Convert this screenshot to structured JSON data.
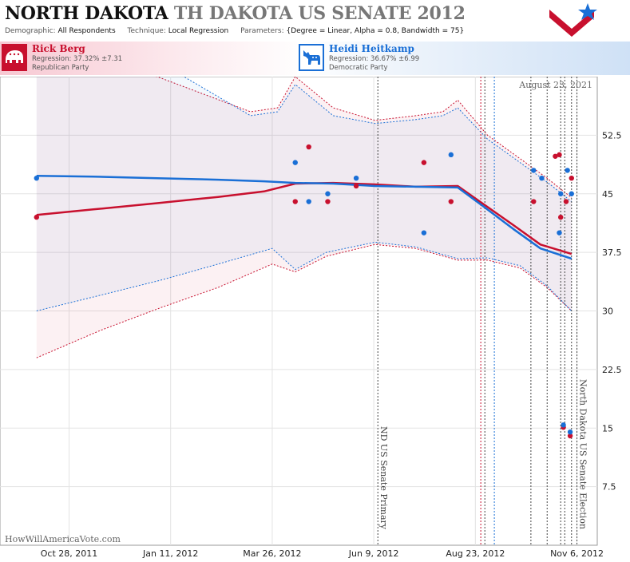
{
  "header": {
    "title_state": "NORTH DAKOTA",
    "title_race": "TH DAKOTA US SENATE 2012",
    "demographic_label": "Demographic:",
    "demographic_value": "All Respondents",
    "technique_label": "Technique:",
    "technique_value": "Local Regression",
    "parameters_label": "Parameters:",
    "parameters_value": "{Degree = Linear, Alpha = 0.8, Bandwidth = 75}"
  },
  "candidates": {
    "rep": {
      "name": "Rick Berg",
      "regression": "Regression: 37.32% ±7.31",
      "party": "Republican Party",
      "color": "#c8102e",
      "icon": "elephant-icon"
    },
    "dem": {
      "name": "Heidi Heitkamp",
      "regression": "Regression: 36.67% ±6.99",
      "party": "Democratic Party",
      "color": "#1a6fd6",
      "icon": "donkey-icon"
    }
  },
  "watermark": "HowWillAmericaVote.com",
  "date_stamp": "August 23, 2021",
  "chart_data": {
    "type": "scatter",
    "x_ticks": [
      "Oct 28, 2011",
      "Jan 11, 2012",
      "Mar 26, 2012",
      "Jun 9, 2012",
      "Aug 23, 2012",
      "Nov 6, 2012"
    ],
    "xlim": [
      "2011-09-07",
      "2012-11-21"
    ],
    "y_ticks": [
      "7.5",
      "15",
      "22.5",
      "30",
      "37.5",
      "45",
      "52.5"
    ],
    "ylim": [
      0,
      60
    ],
    "grid": true,
    "events": [
      {
        "date": "2012-06-12",
        "label": "ND US Senate Primary"
      },
      {
        "date": "2012-11-06",
        "label": "North Dakota US Senate Election"
      }
    ],
    "markers": [
      "2012-08-27",
      "2012-08-30",
      "2012-09-06",
      "2012-10-03",
      "2012-10-15",
      "2012-10-25",
      "2012-10-28",
      "2012-11-02"
    ],
    "series": [
      {
        "name": "Rick Berg",
        "color": "#c8102e",
        "points": [
          {
            "x": "2011-10-04",
            "y": 42
          },
          {
            "x": "2012-04-12",
            "y": 44
          },
          {
            "x": "2012-04-22",
            "y": 51
          },
          {
            "x": "2012-05-06",
            "y": 44
          },
          {
            "x": "2012-05-27",
            "y": 46
          },
          {
            "x": "2012-07-16",
            "y": 49
          },
          {
            "x": "2012-08-05",
            "y": 44
          },
          {
            "x": "2012-10-05",
            "y": 44
          },
          {
            "x": "2012-10-21",
            "y": 49.8
          },
          {
            "x": "2012-10-24",
            "y": 50
          },
          {
            "x": "2012-10-25",
            "y": 42
          },
          {
            "x": "2012-10-27",
            "y": 15.1
          },
          {
            "x": "2012-10-29",
            "y": 44
          },
          {
            "x": "2012-11-02",
            "y": 47
          },
          {
            "x": "2012-11-01",
            "y": 14
          }
        ],
        "trend": [
          {
            "x": "2011-10-04",
            "y": 42.3
          },
          {
            "x": "2011-11-15",
            "y": 43.0
          },
          {
            "x": "2012-01-01",
            "y": 43.8
          },
          {
            "x": "2012-02-15",
            "y": 44.6
          },
          {
            "x": "2012-03-20",
            "y": 45.3
          },
          {
            "x": "2012-04-12",
            "y": 46.3
          },
          {
            "x": "2012-05-10",
            "y": 46.4
          },
          {
            "x": "2012-06-10",
            "y": 46.2
          },
          {
            "x": "2012-07-10",
            "y": 45.9
          },
          {
            "x": "2012-08-10",
            "y": 46.0
          },
          {
            "x": "2012-08-28",
            "y": 43.8
          },
          {
            "x": "2012-09-20",
            "y": 41.0
          },
          {
            "x": "2012-10-10",
            "y": 38.5
          },
          {
            "x": "2012-11-02",
            "y": 37.3
          }
        ],
        "upper": [
          {
            "x": "2011-10-04",
            "y": 63.0
          },
          {
            "x": "2012-01-01",
            "y": 60.0
          },
          {
            "x": "2012-03-10",
            "y": 55.5
          },
          {
            "x": "2012-03-30",
            "y": 56.0
          },
          {
            "x": "2012-04-12",
            "y": 60.0
          },
          {
            "x": "2012-05-10",
            "y": 56.0
          },
          {
            "x": "2012-06-10",
            "y": 54.4
          },
          {
            "x": "2012-07-10",
            "y": 55.0
          },
          {
            "x": "2012-07-30",
            "y": 55.5
          },
          {
            "x": "2012-08-10",
            "y": 57.0
          },
          {
            "x": "2012-09-01",
            "y": 52.5
          },
          {
            "x": "2012-09-25",
            "y": 49.5
          },
          {
            "x": "2012-10-15",
            "y": 47.0
          },
          {
            "x": "2012-11-02",
            "y": 44.5
          }
        ],
        "lower": [
          {
            "x": "2011-10-04",
            "y": 24.0
          },
          {
            "x": "2011-11-20",
            "y": 27.5
          },
          {
            "x": "2012-01-05",
            "y": 30.5
          },
          {
            "x": "2012-02-15",
            "y": 33.0
          },
          {
            "x": "2012-03-26",
            "y": 36.0
          },
          {
            "x": "2012-04-12",
            "y": 35.0
          },
          {
            "x": "2012-05-05",
            "y": 37.0
          },
          {
            "x": "2012-06-10",
            "y": 38.5
          },
          {
            "x": "2012-07-10",
            "y": 38.0
          },
          {
            "x": "2012-08-10",
            "y": 36.5
          },
          {
            "x": "2012-09-01",
            "y": 36.5
          },
          {
            "x": "2012-09-25",
            "y": 35.5
          },
          {
            "x": "2012-10-15",
            "y": 33.0
          },
          {
            "x": "2012-11-02",
            "y": 30.0
          }
        ]
      },
      {
        "name": "Heidi Heitkamp",
        "color": "#1a6fd6",
        "points": [
          {
            "x": "2011-10-04",
            "y": 47
          },
          {
            "x": "2012-04-12",
            "y": 49
          },
          {
            "x": "2012-04-22",
            "y": 44
          },
          {
            "x": "2012-05-06",
            "y": 45
          },
          {
            "x": "2012-05-27",
            "y": 47
          },
          {
            "x": "2012-07-16",
            "y": 40
          },
          {
            "x": "2012-08-05",
            "y": 50
          },
          {
            "x": "2012-10-05",
            "y": 48
          },
          {
            "x": "2012-10-11",
            "y": 47
          },
          {
            "x": "2012-10-24",
            "y": 40
          },
          {
            "x": "2012-10-25",
            "y": 45
          },
          {
            "x": "2012-10-27",
            "y": 15.4
          },
          {
            "x": "2012-10-30",
            "y": 48
          },
          {
            "x": "2012-11-02",
            "y": 45
          },
          {
            "x": "2012-11-01",
            "y": 14.5
          }
        ],
        "trend": [
          {
            "x": "2011-10-04",
            "y": 47.3
          },
          {
            "x": "2011-11-15",
            "y": 47.2
          },
          {
            "x": "2012-01-01",
            "y": 47.0
          },
          {
            "x": "2012-02-15",
            "y": 46.8
          },
          {
            "x": "2012-03-20",
            "y": 46.6
          },
          {
            "x": "2012-04-12",
            "y": 46.4
          },
          {
            "x": "2012-05-10",
            "y": 46.3
          },
          {
            "x": "2012-06-10",
            "y": 46.0
          },
          {
            "x": "2012-07-10",
            "y": 45.9
          },
          {
            "x": "2012-08-10",
            "y": 45.8
          },
          {
            "x": "2012-08-28",
            "y": 43.5
          },
          {
            "x": "2012-09-20",
            "y": 40.5
          },
          {
            "x": "2012-10-10",
            "y": 38.0
          },
          {
            "x": "2012-11-02",
            "y": 36.7
          }
        ],
        "upper": [
          {
            "x": "2011-10-04",
            "y": 66.0
          },
          {
            "x": "2012-01-01",
            "y": 62.0
          },
          {
            "x": "2012-03-10",
            "y": 55.0
          },
          {
            "x": "2012-03-30",
            "y": 55.5
          },
          {
            "x": "2012-04-12",
            "y": 59.0
          },
          {
            "x": "2012-05-10",
            "y": 55.0
          },
          {
            "x": "2012-06-10",
            "y": 54.0
          },
          {
            "x": "2012-07-10",
            "y": 54.5
          },
          {
            "x": "2012-07-30",
            "y": 55.0
          },
          {
            "x": "2012-08-10",
            "y": 56.0
          },
          {
            "x": "2012-09-01",
            "y": 52.0
          },
          {
            "x": "2012-09-25",
            "y": 49.0
          },
          {
            "x": "2012-10-15",
            "y": 46.5
          },
          {
            "x": "2012-11-02",
            "y": 44.0
          }
        ],
        "lower": [
          {
            "x": "2011-10-04",
            "y": 30.0
          },
          {
            "x": "2011-11-20",
            "y": 32.0
          },
          {
            "x": "2012-01-05",
            "y": 34.0
          },
          {
            "x": "2012-02-15",
            "y": 36.0
          },
          {
            "x": "2012-03-26",
            "y": 38.0
          },
          {
            "x": "2012-04-12",
            "y": 35.3
          },
          {
            "x": "2012-05-05",
            "y": 37.5
          },
          {
            "x": "2012-06-10",
            "y": 38.8
          },
          {
            "x": "2012-07-10",
            "y": 38.2
          },
          {
            "x": "2012-08-10",
            "y": 36.7
          },
          {
            "x": "2012-09-01",
            "y": 36.8
          },
          {
            "x": "2012-09-25",
            "y": 35.8
          },
          {
            "x": "2012-10-15",
            "y": 33.2
          },
          {
            "x": "2012-11-02",
            "y": 30.0
          }
        ]
      }
    ]
  }
}
